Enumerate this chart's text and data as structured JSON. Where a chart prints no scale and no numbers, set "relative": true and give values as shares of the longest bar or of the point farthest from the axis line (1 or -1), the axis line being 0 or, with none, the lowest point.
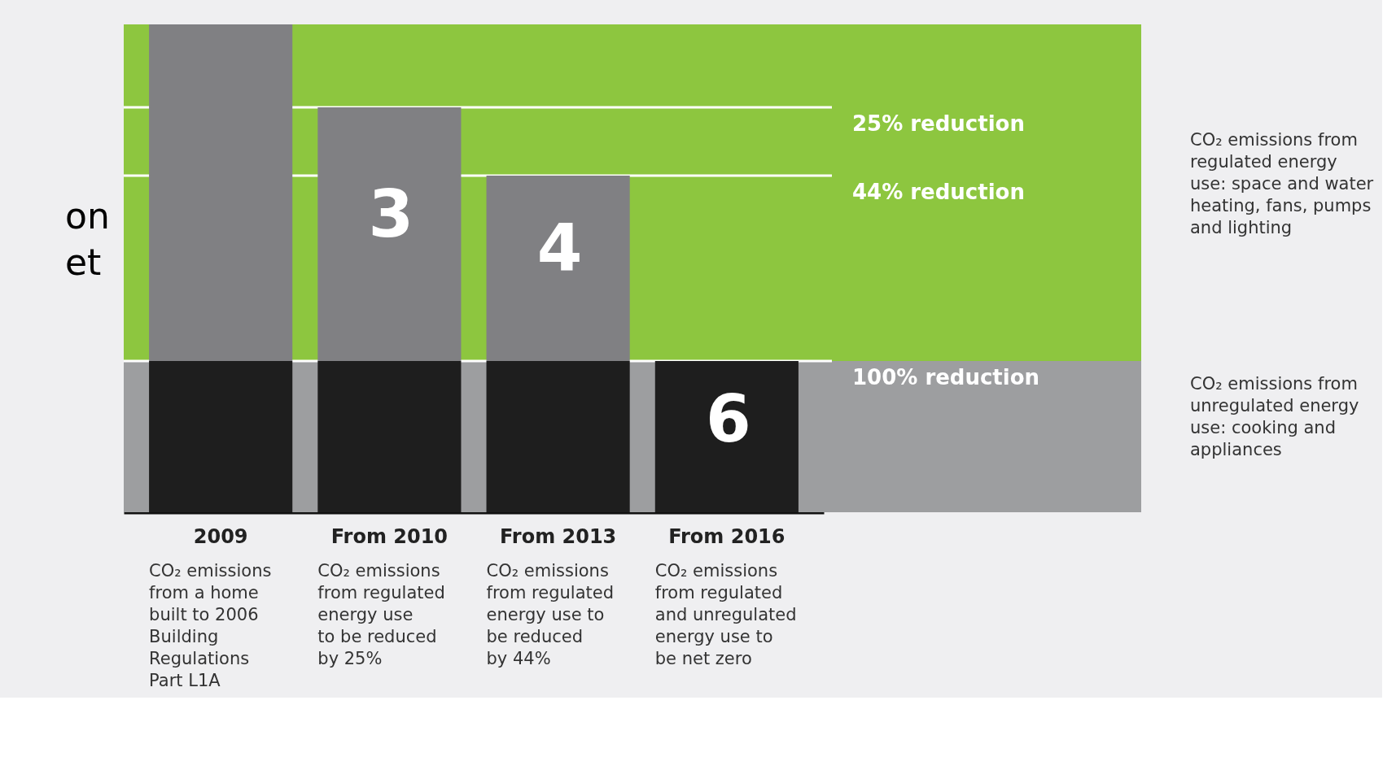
{
  "chart_data": {
    "type": "bar",
    "stacked": true,
    "relative": true,
    "categories": [
      "2009",
      "From 2010",
      "From 2013",
      "From 2016"
    ],
    "series": [
      {
        "color": "#1e1e1e",
        "values": [
          0.31,
          0.31,
          0.31,
          0.31
        ]
      },
      {
        "color": "#808083",
        "values": [
          0.69,
          0.52,
          0.38,
          0
        ]
      }
    ],
    "bands": [
      {
        "axis": "y",
        "from": 0.31,
        "to": 1,
        "color": "#8dc63f"
      },
      {
        "axis": "y",
        "from": 0,
        "to": 0.31,
        "color": "#9d9ea0"
      }
    ],
    "ref_lines": [
      {
        "axis": "y",
        "value": 0.83,
        "label": "25% reduction",
        "color": "#ffffff"
      },
      {
        "axis": "y",
        "value": 0.69,
        "label": "44% reduction",
        "color": "#ffffff"
      },
      {
        "axis": "y",
        "value": 0.31,
        "label": "100% reduction",
        "color": "#ffffff"
      }
    ],
    "annotations": [
      "CO₂ emissions\nfrom a home\nbuilt to 2006\nBuilding\nRegulations\nPart L1A",
      "CO₂ emissions\nfrom regulated\nenergy use\nto be reduced\nby 25%",
      "CO₂ emissions\nfrom regulated\nenergy use to\nbe reduced\nby 44%",
      "CO₂ emissions\nfrom regulated\nand unregulated\nenergy use to\nbe net zero",
      "CO₂ emissions from\nregulated energy\nuse: space and water\nheating, fans, pumps\nand lighting",
      "CO₂ emissions from\nunregulated energy\nuse: cooking and\nappliances",
      "on\net",
      "3",
      "4",
      "6"
    ]
  }
}
